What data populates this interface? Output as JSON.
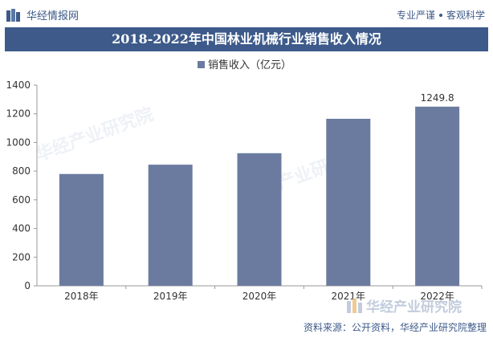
{
  "header": {
    "brand": "华经情报网",
    "slogan_left": "专业严谨",
    "slogan_right": "客观科学"
  },
  "title": "2018-2022年中国林业机械行业销售收入情况",
  "chart_data": {
    "type": "bar",
    "categories": [
      "2018年",
      "2019年",
      "2020年",
      "2021年",
      "2022年"
    ],
    "series": [
      {
        "name": "销售收入（亿元）",
        "values": [
          780,
          845,
          925,
          1165,
          1249.8
        ],
        "color": "#6b7ba0"
      }
    ],
    "data_labels": [
      {
        "category": "2022年",
        "text": "1249.8"
      }
    ],
    "yticks": [
      "0",
      "200",
      "400",
      "600",
      "800",
      "1000",
      "1200",
      "1400"
    ],
    "ylim": [
      0,
      1400
    ],
    "grid": false,
    "legend": "top-center"
  },
  "watermark": "华经产业研究院",
  "source": "资料来源：公开资料，华经产业研究院整理",
  "colors": {
    "brand": "#3d5a8a",
    "bar": "#6b7ba0"
  }
}
